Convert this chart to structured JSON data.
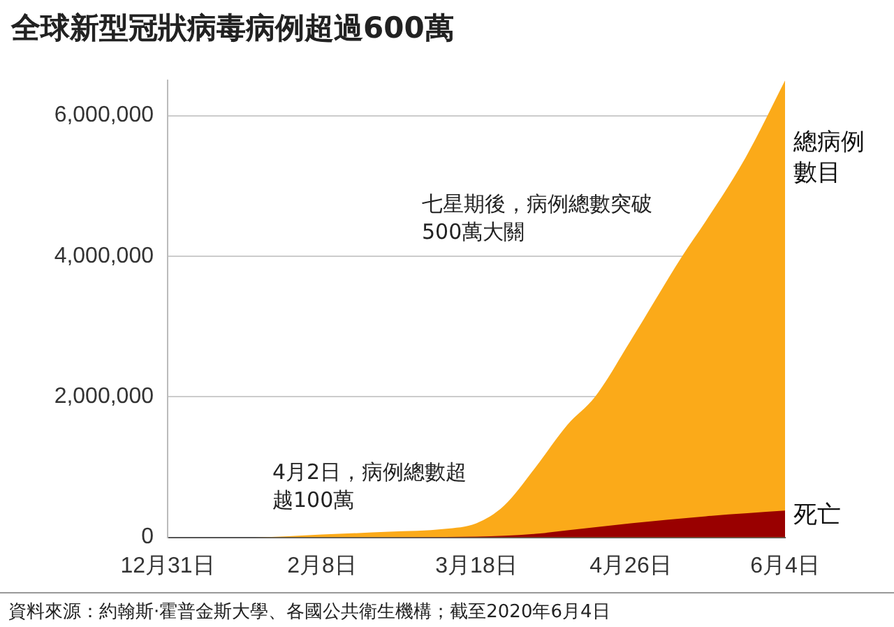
{
  "chart_data": {
    "type": "area",
    "title": "全球新型冠狀病毒病例超過600萬",
    "xlim": [
      "2019-12-31",
      "2020-06-04"
    ],
    "xticks": [
      {
        "value": "2019-12-31",
        "label": "12月31日"
      },
      {
        "value": "2020-02-08",
        "label": "2月8日"
      },
      {
        "value": "2020-03-18",
        "label": "3月18日"
      },
      {
        "value": "2020-04-26",
        "label": "4月26日"
      },
      {
        "value": "2020-06-04",
        "label": "6月4日"
      }
    ],
    "ylim": [
      0,
      6500000
    ],
    "yticks": [
      0,
      {
        "value": 2000000,
        "label": "2,000,000"
      },
      {
        "value": 4000000,
        "label": "4,000,000"
      },
      {
        "value": 6000000,
        "label": "6,000,000"
      }
    ],
    "grid": "y",
    "series": [
      {
        "name": "總病例數目",
        "color": "#fbaa19",
        "x": [
          "2019-12-31",
          "2020-01-22",
          "2020-02-08",
          "2020-02-25",
          "2020-03-10",
          "2020-03-18",
          "2020-03-25",
          "2020-04-02",
          "2020-04-10",
          "2020-04-17",
          "2020-04-26",
          "2020-05-09",
          "2020-05-15",
          "2020-05-25",
          "2020-06-04"
        ],
        "values": [
          0,
          0,
          40000,
          80000,
          120000,
          200000,
          450000,
          1000000,
          1600000,
          2000000,
          2800000,
          4000000,
          4500000,
          5400000,
          6500000
        ]
      },
      {
        "name": "死亡",
        "color": "#990000",
        "x": [
          "2019-12-31",
          "2020-02-08",
          "2020-03-18",
          "2020-04-02",
          "2020-04-10",
          "2020-04-26",
          "2020-05-15",
          "2020-06-04"
        ],
        "values": [
          0,
          0,
          10000,
          50000,
          100000,
          200000,
          300000,
          380000
        ]
      }
    ],
    "annotations": [
      "七星期後，病例總數突破500萬大關",
      "4月2日，病例總數超越100萬",
      "資料來源：約翰斯·霍普金斯大學、各國公共衛生機構；截至2020年6月4日"
    ]
  }
}
